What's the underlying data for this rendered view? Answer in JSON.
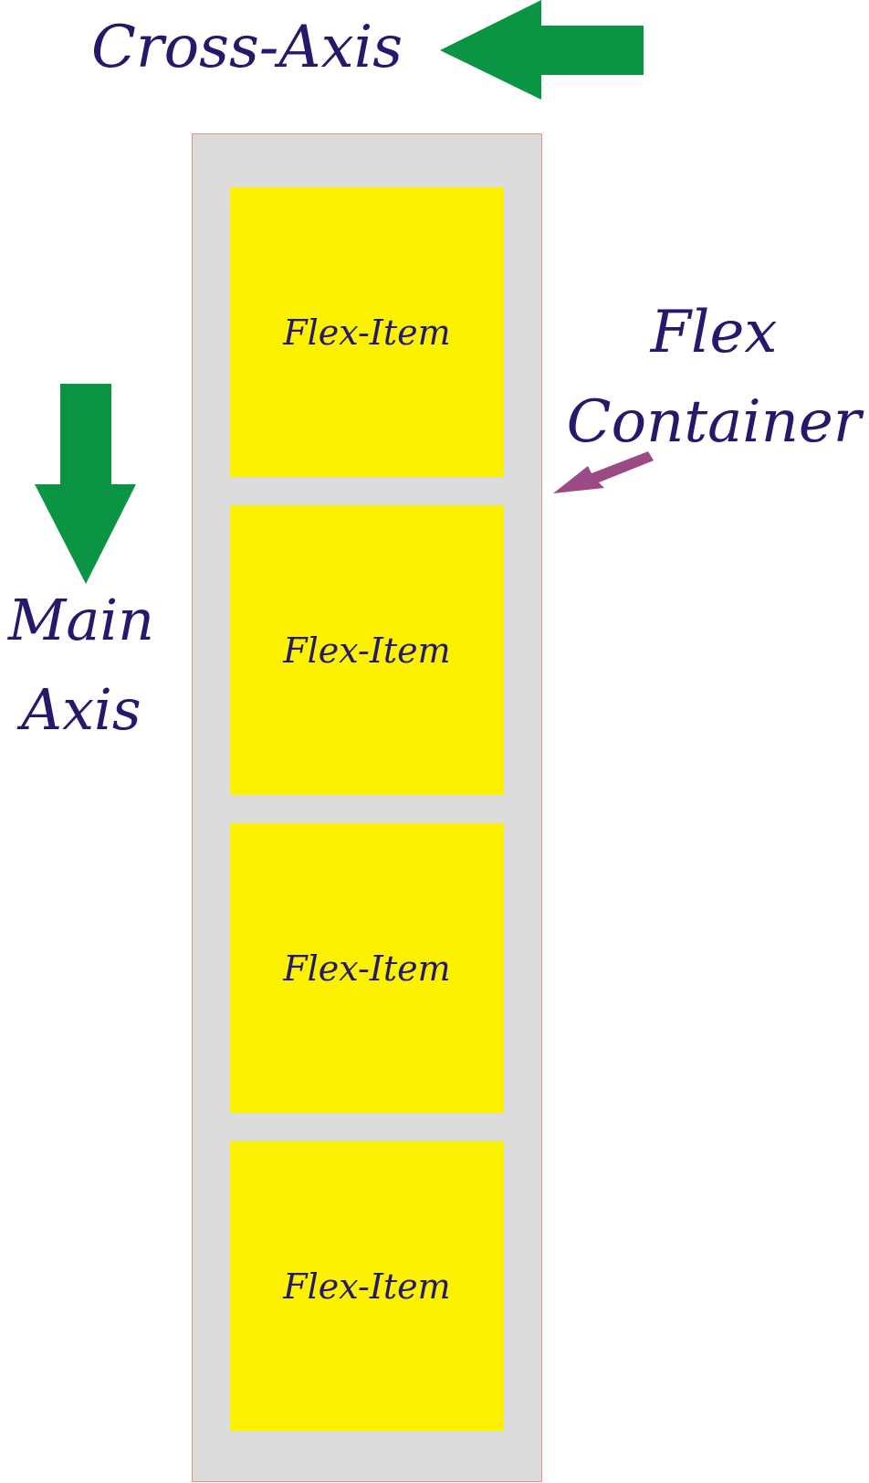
{
  "cross_axis": {
    "label": "Cross-Axis"
  },
  "main_axis": {
    "line1": "Main",
    "line2": "Axis"
  },
  "flex_container": {
    "line1": "Flex",
    "line2": "Container"
  },
  "flex_items": [
    {
      "label": "Flex-Item"
    },
    {
      "label": "Flex-Item"
    },
    {
      "label": "Flex-Item"
    },
    {
      "label": "Flex-Item"
    }
  ],
  "colors": {
    "text": "#231a6b",
    "axis_arrow": "#0a9444",
    "pointer_arrow": "#9b4a86",
    "container_fill": "#dcdcdc",
    "container_border": "#e8908a",
    "item_fill": "#fcf200"
  }
}
